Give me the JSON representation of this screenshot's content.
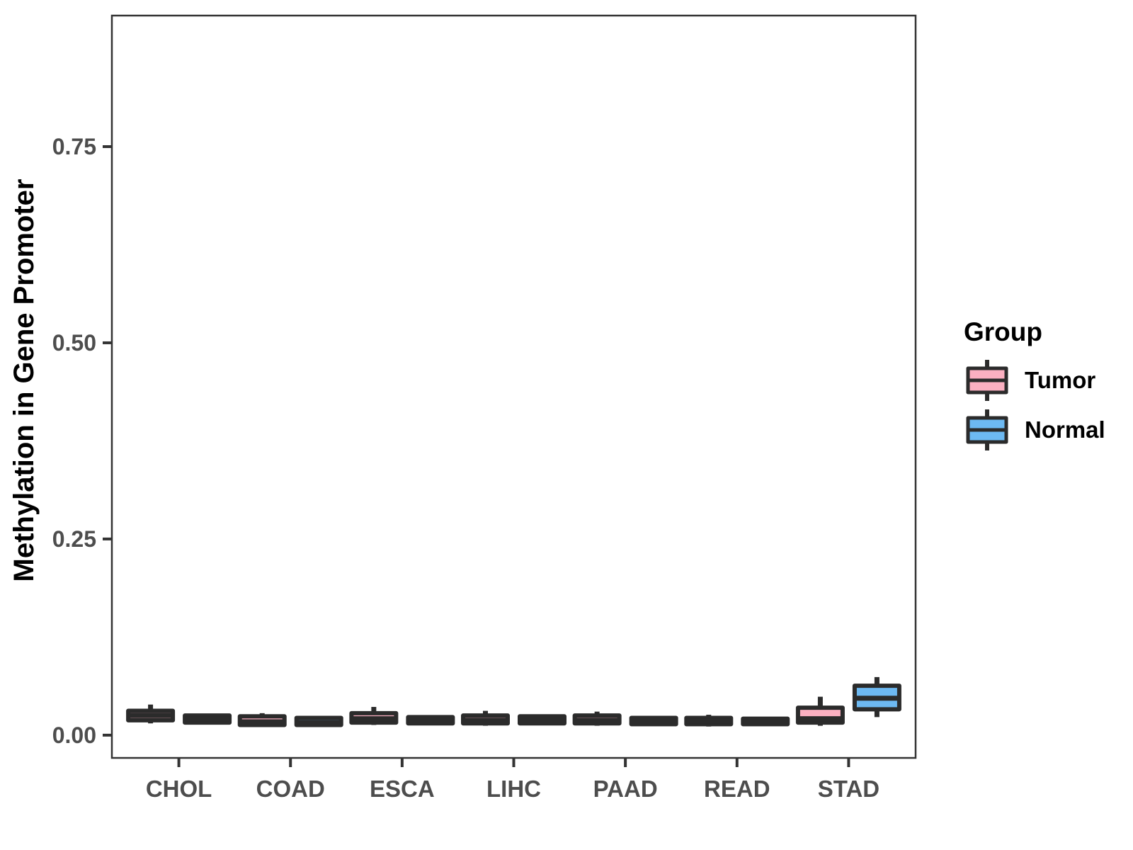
{
  "chart_data": {
    "type": "boxplot",
    "title": "",
    "xlabel": "",
    "ylabel": "Methylation in Gene Promoter",
    "categories": [
      "CHOL",
      "COAD",
      "ESCA",
      "LIHC",
      "PAAD",
      "READ",
      "STAD"
    ],
    "y_ticks": [
      0.0,
      0.25,
      0.5,
      0.75
    ],
    "y_tick_labels": [
      "0.00",
      "0.25",
      "0.50",
      "0.75"
    ],
    "ylim": [
      -0.029,
      0.917
    ],
    "grid": "off",
    "legend": {
      "title": "Group",
      "position": "right",
      "entries": [
        {
          "label": "Tumor",
          "color": "#FBB0C1"
        },
        {
          "label": "Normal",
          "color": "#6DB9F2"
        }
      ]
    },
    "stroke_color": "#2B2B2B",
    "panel_border_color": "#333333",
    "axis_text_color": "#4D4D4D",
    "series": [
      {
        "name": "Tumor",
        "color": "#FBB0C1",
        "boxes": [
          {
            "category": "CHOL",
            "min": 0.015,
            "q1": 0.019,
            "median": 0.025,
            "q3": 0.031,
            "max": 0.039
          },
          {
            "category": "COAD",
            "min": 0.011,
            "q1": 0.013,
            "median": 0.017,
            "q3": 0.024,
            "max": 0.028
          },
          {
            "category": "ESCA",
            "min": 0.013,
            "q1": 0.016,
            "median": 0.021,
            "q3": 0.028,
            "max": 0.036
          },
          {
            "category": "LIHC",
            "min": 0.012,
            "q1": 0.015,
            "median": 0.019,
            "q3": 0.025,
            "max": 0.031
          },
          {
            "category": "PAAD",
            "min": 0.012,
            "q1": 0.015,
            "median": 0.019,
            "q3": 0.025,
            "max": 0.03
          },
          {
            "category": "READ",
            "min": 0.011,
            "q1": 0.014,
            "median": 0.018,
            "q3": 0.022,
            "max": 0.026
          },
          {
            "category": "STAD",
            "min": 0.012,
            "q1": 0.016,
            "median": 0.021,
            "q3": 0.035,
            "max": 0.049
          }
        ]
      },
      {
        "name": "Normal",
        "color": "#6DB9F2",
        "boxes": [
          {
            "category": "CHOL",
            "min": 0.015,
            "q1": 0.016,
            "median": 0.021,
            "q3": 0.025,
            "max": 0.027
          },
          {
            "category": "COAD",
            "min": 0.012,
            "q1": 0.013,
            "median": 0.016,
            "q3": 0.022,
            "max": 0.023
          },
          {
            "category": "ESCA",
            "min": 0.013,
            "q1": 0.015,
            "median": 0.019,
            "q3": 0.023,
            "max": 0.025
          },
          {
            "category": "LIHC",
            "min": 0.013,
            "q1": 0.015,
            "median": 0.019,
            "q3": 0.024,
            "max": 0.026
          },
          {
            "category": "PAAD",
            "min": 0.012,
            "q1": 0.014,
            "median": 0.017,
            "q3": 0.022,
            "max": 0.024
          },
          {
            "category": "READ",
            "min": 0.012,
            "q1": 0.014,
            "median": 0.017,
            "q3": 0.021,
            "max": 0.023
          },
          {
            "category": "STAD",
            "min": 0.023,
            "q1": 0.033,
            "median": 0.047,
            "q3": 0.063,
            "max": 0.074
          }
        ]
      }
    ]
  }
}
